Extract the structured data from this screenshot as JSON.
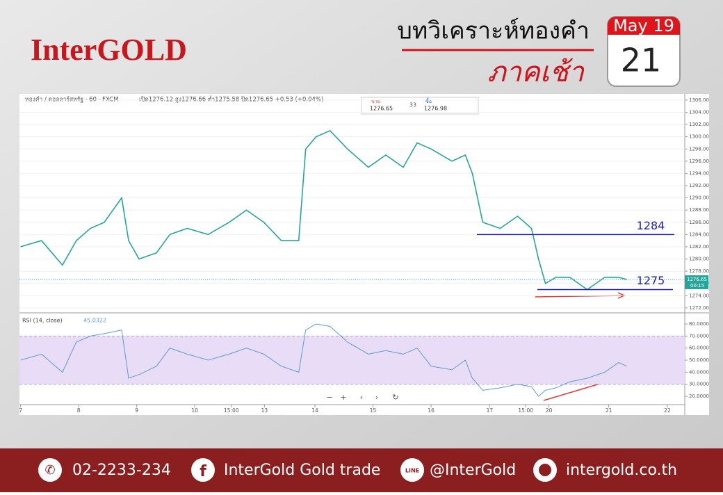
{
  "header": {
    "logo": "InterGOLD",
    "title": "บทวิเคราะห์ทองคำ",
    "subtitle": "ภาคเช้า",
    "date": {
      "month": "May 19",
      "day": "21"
    }
  },
  "chart_data": [
    {
      "type": "line",
      "title": "ทองคำ / ดอลลาร์สหรัฐ · 60 · FXCM",
      "subtitle": "เปิด1276.12 สูง1276.66 ต่ำ1275.58 ปิด1276.65 +0.53 (+0.04%)",
      "quote": {
        "sell_label": "ขาย",
        "sell": 1276.65,
        "spread": 33,
        "buy_label": "ซื้อ",
        "buy": 1276.98
      },
      "x": [
        0,
        0.36,
        0.72,
        0.96,
        1.2,
        1.44,
        1.74,
        1.86,
        2.04,
        2.34,
        2.57,
        2.87,
        3.23,
        3.59,
        3.89,
        4.19,
        4.49,
        4.79,
        4.91,
        5.09,
        5.33,
        5.63,
        5.99,
        6.29,
        6.59,
        6.83,
        7.07,
        7.43,
        7.66,
        7.78,
        7.96,
        8.26,
        8.56,
        8.8,
        8.92,
        9.04,
        9.22,
        9.46,
        9.76,
        10.06,
        10.3,
        10.44
      ],
      "values": [
        1282,
        1283,
        1279,
        1283,
        1285,
        1286,
        1290,
        1283,
        1280,
        1281,
        1284,
        1285,
        1284,
        1286,
        1288,
        1286,
        1283,
        1283,
        1298,
        1300,
        1301,
        1298,
        1295,
        1297,
        1295,
        1299,
        1298,
        1296,
        1297,
        1294,
        1286,
        1285,
        1287,
        1285,
        1280,
        1276,
        1277,
        1277,
        1275,
        1277,
        1277,
        1276.65
      ],
      "color": "#26a69a",
      "last_price": 1276.65,
      "last_time": "00:15",
      "levels": [
        1284,
        1275
      ],
      "xlim": [
        -0.02,
        11.44
      ],
      "ylim": [
        1271.3,
        1306.9
      ],
      "yticks": [
        {
          "value": 1306,
          "label": "1306.00"
        },
        {
          "value": 1304,
          "label": "1304.00"
        },
        {
          "value": 1302,
          "label": "1302.00"
        },
        {
          "value": 1300,
          "label": "1300.00"
        },
        {
          "value": 1298,
          "label": "1298.00"
        },
        {
          "value": 1296,
          "label": "1296.00"
        },
        {
          "value": 1294,
          "label": "1294.00"
        },
        {
          "value": 1292,
          "label": "1292.00"
        },
        {
          "value": 1290,
          "label": "1290.00"
        },
        {
          "value": 1288,
          "label": "1288.00"
        },
        {
          "value": 1286,
          "label": "1286.00"
        },
        {
          "value": 1284,
          "label": "1284.00"
        },
        {
          "value": 1282,
          "label": "1282.00"
        },
        {
          "value": 1280,
          "label": "1280.00"
        },
        {
          "value": 1278,
          "label": "1278.00"
        },
        {
          "value": 1276,
          "label": "1276.00"
        },
        {
          "value": 1274,
          "label": "1274.00"
        },
        {
          "value": 1272,
          "label": "1272.00"
        }
      ],
      "grid": true
    },
    {
      "type": "line",
      "title": "RSI (14, close)",
      "current": 45.0322,
      "x": [
        0,
        0.36,
        0.72,
        0.96,
        1.2,
        1.44,
        1.74,
        1.86,
        2.04,
        2.34,
        2.57,
        2.87,
        3.23,
        3.59,
        3.89,
        4.19,
        4.49,
        4.79,
        4.91,
        5.09,
        5.33,
        5.63,
        5.99,
        6.29,
        6.59,
        6.83,
        7.07,
        7.43,
        7.66,
        7.78,
        7.96,
        8.26,
        8.56,
        8.8,
        8.92,
        9.04,
        9.22,
        9.46,
        9.76,
        10.06,
        10.3,
        10.44
      ],
      "values": [
        50,
        55,
        40,
        65,
        70,
        72,
        75,
        35,
        38,
        45,
        60,
        55,
        50,
        55,
        60,
        55,
        45,
        40,
        75,
        80,
        78,
        65,
        55,
        58,
        55,
        60,
        45,
        42,
        50,
        35,
        25,
        27,
        30,
        28,
        20,
        25,
        27,
        32,
        35,
        40,
        48,
        45
      ],
      "color": "#5b9bd5",
      "band": [
        30,
        70
      ],
      "xlim": [
        -0.02,
        11.44
      ],
      "ylim": [
        13.1,
        88.1
      ],
      "yticks": [
        {
          "value": 80,
          "label": "80.0000"
        },
        {
          "value": 70,
          "label": "70.0000"
        },
        {
          "value": 60,
          "label": "60.0000"
        },
        {
          "value": 50,
          "label": "50.0000"
        },
        {
          "value": 40,
          "label": "40.0000"
        },
        {
          "value": 30,
          "label": "30.0000"
        },
        {
          "value": 20,
          "label": "20.0000"
        }
      ],
      "xticks": [
        {
          "value": 0,
          "label": "7"
        },
        {
          "value": 1,
          "label": "8"
        },
        {
          "value": 2,
          "label": "9"
        },
        {
          "value": 3,
          "label": "10"
        },
        {
          "value": 3.63,
          "label": "15:00"
        },
        {
          "value": 4.2,
          "label": "13"
        },
        {
          "value": 5.07,
          "label": "14"
        },
        {
          "value": 6.07,
          "label": "15"
        },
        {
          "value": 7.07,
          "label": "16"
        },
        {
          "value": 8.08,
          "label": "17"
        },
        {
          "value": 8.7,
          "label": "15:00"
        },
        {
          "value": 9.1,
          "label": "20"
        },
        {
          "value": 10.13,
          "label": "21"
        },
        {
          "value": 11.14,
          "label": "22"
        }
      ]
    }
  ],
  "footer": {
    "phone": "02-2233-234",
    "facebook": "InterGold Gold trade",
    "line": "@InterGold",
    "website": "intergold.co.th"
  }
}
